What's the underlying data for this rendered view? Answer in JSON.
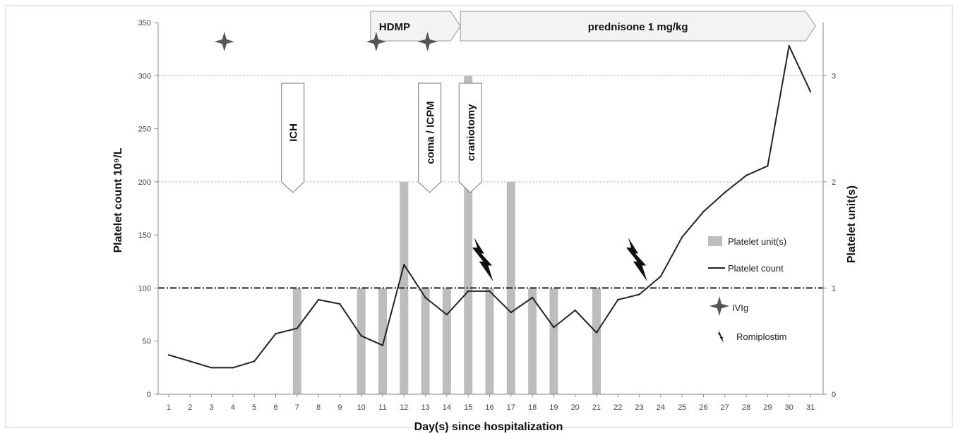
{
  "chart_data": {
    "type": "bar",
    "xlabel": "Day(s) since hospitalization",
    "ylabel_left": "Platelet count 10⁹/L",
    "ylabel_right": "Platelet unit(s)",
    "ylim_left": [
      0,
      350
    ],
    "ylim_right": [
      0,
      3.5
    ],
    "yticks_left": [
      "0",
      "50",
      "100",
      "150",
      "200",
      "250",
      "300",
      "350"
    ],
    "yticks_right": [
      "0",
      "1",
      "2",
      "3"
    ],
    "x": [
      1,
      2,
      3,
      4,
      5,
      6,
      7,
      8,
      9,
      10,
      11,
      12,
      13,
      14,
      15,
      16,
      17,
      18,
      19,
      20,
      21,
      22,
      23,
      24,
      25,
      26,
      27,
      28,
      29,
      30,
      31
    ],
    "threshold": 100,
    "gridlines": [
      200,
      300
    ],
    "series": [
      {
        "name": "Platelet unit(s)",
        "type": "bar",
        "axis": "right",
        "color": "#bdbdbd",
        "values": [
          0,
          0,
          0,
          0,
          0,
          0,
          1,
          0,
          0,
          1,
          1,
          2,
          1,
          1,
          3,
          1,
          2,
          1,
          1,
          0,
          1,
          0,
          0,
          0,
          0,
          0,
          0,
          0,
          0,
          0,
          0
        ]
      },
      {
        "name": "Platelet count",
        "type": "line",
        "axis": "left",
        "color": "#222222",
        "values": [
          37,
          31,
          25,
          25,
          31,
          57,
          62,
          89,
          85,
          55,
          46,
          122,
          91,
          75,
          97,
          97,
          77,
          91,
          63,
          79,
          58,
          89,
          94,
          111,
          148,
          172,
          190,
          206,
          215,
          328,
          285
        ]
      }
    ],
    "treatments": [
      {
        "label": "HDMP",
        "start": 10.7,
        "end": 14.9
      },
      {
        "label": "prednisone 1 mg/kg",
        "start": 14.9,
        "end": 31.5
      }
    ],
    "events": [
      {
        "label": "ICH",
        "day": 6.8
      },
      {
        "label": "coma / ICPM",
        "day": 13.2
      },
      {
        "label": "craniotomy",
        "day": 15.1
      }
    ],
    "ivig_days": [
      3.6,
      10.7,
      13.1
    ],
    "romiplostim_days": [
      15.7,
      22.9
    ],
    "legend": [
      {
        "label": "Platelet unit(s)",
        "kind": "bar"
      },
      {
        "label": "Platelet count",
        "kind": "line"
      },
      {
        "label": "IVIg",
        "kind": "star"
      },
      {
        "label": "Romiplostim",
        "kind": "bolt"
      }
    ]
  }
}
